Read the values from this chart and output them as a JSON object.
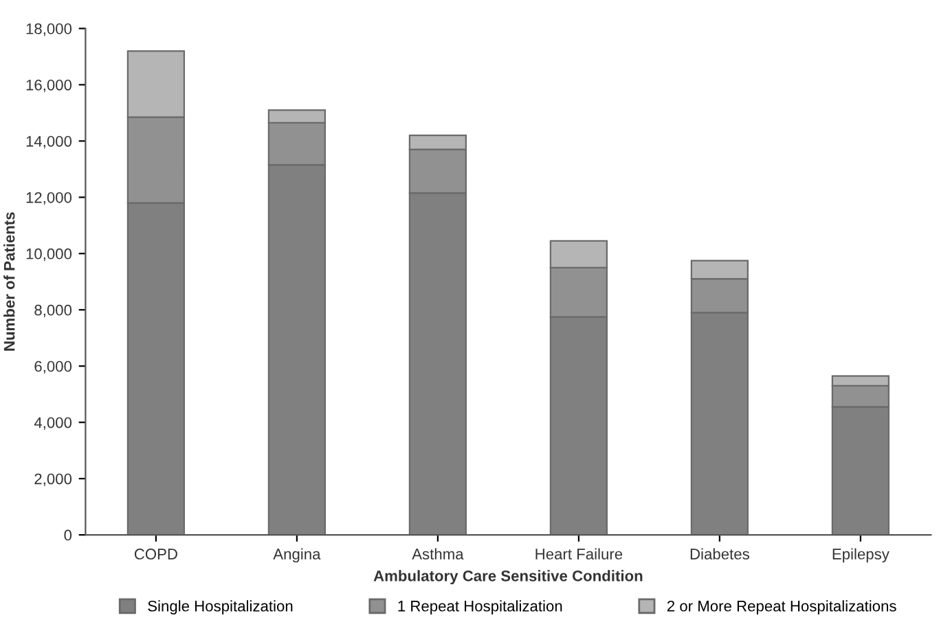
{
  "chart_data": {
    "type": "bar",
    "stacked": true,
    "xlabel": "Ambulatory Care Sensitive Condition",
    "ylabel": "Number of Patients",
    "categories": [
      "COPD",
      "Angina",
      "Asthma",
      "Heart Failure",
      "Diabetes",
      "Epilepsy"
    ],
    "series": [
      {
        "name": "Single Hospitalization",
        "color": "#808080",
        "values": [
          11800,
          13150,
          12150,
          7750,
          7900,
          4550
        ]
      },
      {
        "name": "1 Repeat Hospitalization",
        "color": "#919191",
        "values": [
          3050,
          1500,
          1550,
          1750,
          1200,
          750
        ]
      },
      {
        "name": "2 or More Repeat Hospitalizations",
        "color": "#b5b5b5",
        "values": [
          2350,
          450,
          500,
          950,
          650,
          350
        ]
      }
    ],
    "ylim": [
      0,
      18000
    ],
    "yticks": [
      {
        "value": 0,
        "label": "0"
      },
      {
        "value": 2000,
        "label": "2,000"
      },
      {
        "value": 4000,
        "label": "4,000"
      },
      {
        "value": 6000,
        "label": "6,000"
      },
      {
        "value": 8000,
        "label": "8,000"
      },
      {
        "value": 10000,
        "label": "10,000"
      },
      {
        "value": 12000,
        "label": "12,000"
      },
      {
        "value": 14000,
        "label": "14,000"
      },
      {
        "value": 16000,
        "label": "16,000"
      },
      {
        "value": 18000,
        "label": "18,000"
      }
    ],
    "grid": false,
    "legend": "bottom"
  }
}
